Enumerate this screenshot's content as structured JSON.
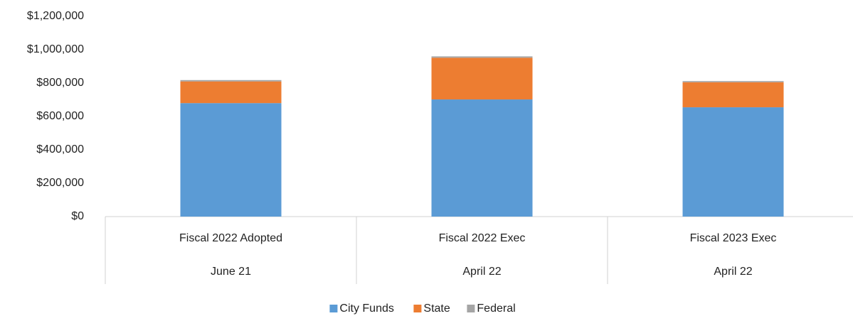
{
  "chart_data": {
    "type": "stacked_bar",
    "categories": [
      "Fiscal 2022 Adopted",
      "Fiscal 2022 Exec",
      "Fiscal 2023 Exec"
    ],
    "sublabels": [
      "June 21",
      "April 22",
      "April 22"
    ],
    "series": [
      {
        "name": "City Funds",
        "color": "#5b9bd5",
        "values": [
          680000,
          702000,
          655000
        ]
      },
      {
        "name": "State",
        "color": "#ed7d31",
        "values": [
          130000,
          250000,
          150000
        ]
      },
      {
        "name": "Federal",
        "color": "#a5a5a5",
        "values": [
          8000,
          8000,
          7000
        ]
      }
    ],
    "ylim": [
      0,
      1200000
    ],
    "yticks": [
      {
        "value": 0,
        "label": "$0"
      },
      {
        "value": 200000,
        "label": "$200,000"
      },
      {
        "value": 400000,
        "label": "$400,000"
      },
      {
        "value": 600000,
        "label": "$600,000"
      },
      {
        "value": 800000,
        "label": "$800,000"
      },
      {
        "value": 1000000,
        "label": "$1,000,000"
      },
      {
        "value": 1200000,
        "label": "$1,200,000"
      }
    ],
    "grid": false,
    "legend": "bottom"
  }
}
